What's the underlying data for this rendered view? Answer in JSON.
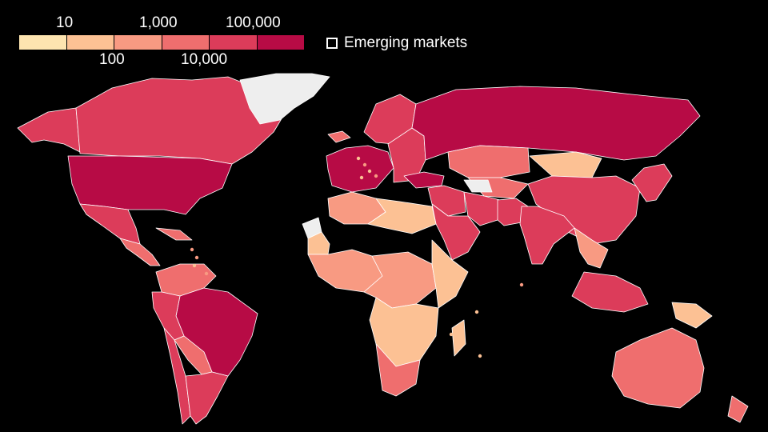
{
  "legend": {
    "ticks_top": [
      "10",
      "1,000",
      "100,000"
    ],
    "ticks_bottom": [
      "100",
      "10,000"
    ],
    "colors": [
      "#fde4b0",
      "#fcc194",
      "#f89a82",
      "#ef6e6e",
      "#dc3c5a",
      "#b70b45"
    ],
    "no_data_color": "#eeeeee",
    "emerging_label": "Emerging markets"
  },
  "map_regions": [
    {
      "name": "canada",
      "level": 4
    },
    {
      "name": "alaska",
      "level": 4
    },
    {
      "name": "usa",
      "level": 5
    },
    {
      "name": "mexico",
      "level": 4
    },
    {
      "name": "central-america",
      "level": 3
    },
    {
      "name": "caribbean",
      "level": 3
    },
    {
      "name": "greenland",
      "level": 0
    },
    {
      "name": "colombia-venezuela",
      "level": 3
    },
    {
      "name": "peru",
      "level": 4
    },
    {
      "name": "brazil",
      "level": 5
    },
    {
      "name": "bolivia-paraguay",
      "level": 3
    },
    {
      "name": "chile",
      "level": 4
    },
    {
      "name": "argentina",
      "level": 4
    },
    {
      "name": "iceland",
      "level": 3
    },
    {
      "name": "western-europe",
      "level": 5
    },
    {
      "name": "scandinavia",
      "level": 4
    },
    {
      "name": "eastern-europe",
      "level": 4
    },
    {
      "name": "russia",
      "level": 5
    },
    {
      "name": "turkey",
      "level": 5
    },
    {
      "name": "middle-east",
      "level": 4
    },
    {
      "name": "saudi-arabia",
      "level": 4
    },
    {
      "name": "iran",
      "level": 4
    },
    {
      "name": "central-asia",
      "level": 3
    },
    {
      "name": "kazakhstan",
      "level": 3
    },
    {
      "name": "turkmenistan",
      "level": 0
    },
    {
      "name": "mongolia",
      "level": 1
    },
    {
      "name": "china",
      "level": 4
    },
    {
      "name": "india",
      "level": 4
    },
    {
      "name": "pakistan",
      "level": 4
    },
    {
      "name": "southeast-asia",
      "level": 2
    },
    {
      "name": "japan-korea",
      "level": 4
    },
    {
      "name": "indonesia-philippines",
      "level": 4
    },
    {
      "name": "papua-new-guinea",
      "level": 1
    },
    {
      "name": "australia",
      "level": 3
    },
    {
      "name": "new-zealand",
      "level": 3
    },
    {
      "name": "north-africa",
      "level": 2
    },
    {
      "name": "libya-egypt",
      "level": 1
    },
    {
      "name": "western-sahara",
      "level": 0
    },
    {
      "name": "mauritania",
      "level": 1
    },
    {
      "name": "west-africa",
      "level": 2
    },
    {
      "name": "central-africa",
      "level": 2
    },
    {
      "name": "east-africa",
      "level": 1
    },
    {
      "name": "southern-africa",
      "level": 1
    },
    {
      "name": "south-africa",
      "level": 3
    },
    {
      "name": "madagascar",
      "level": 1
    }
  ]
}
